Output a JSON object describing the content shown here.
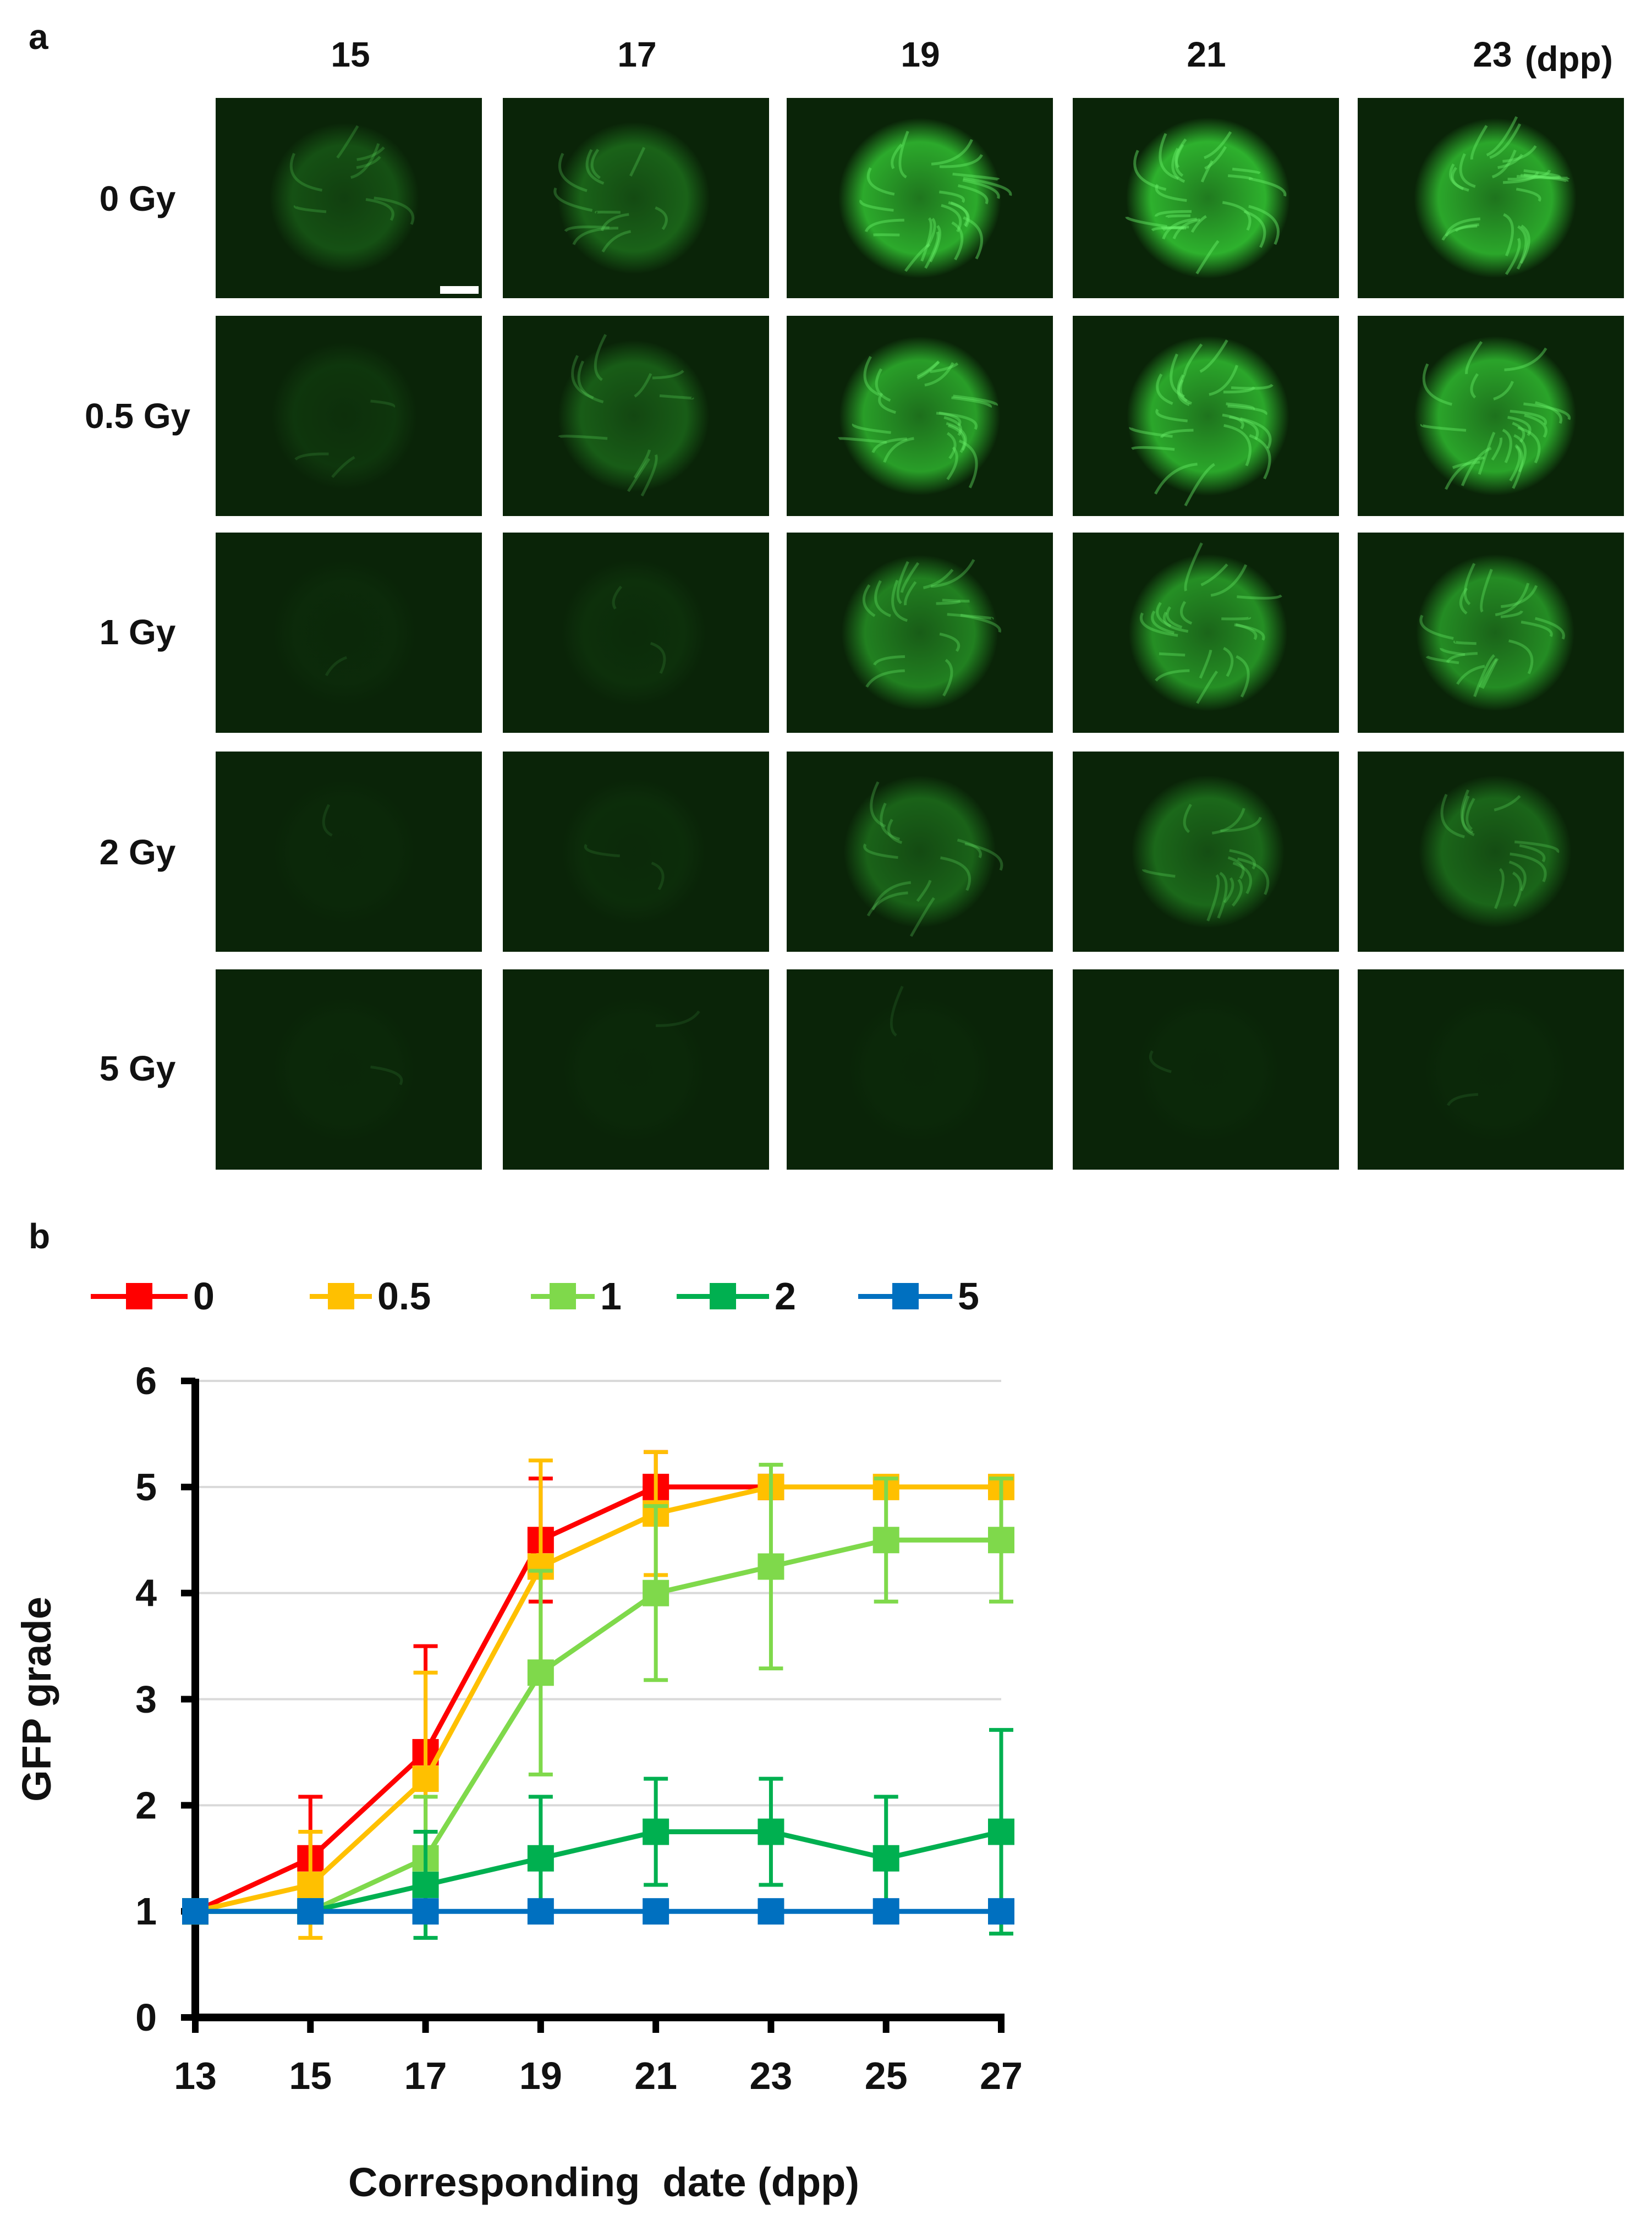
{
  "panel_a": {
    "label": "a",
    "columns": [
      "15",
      "17",
      "19",
      "21",
      "23"
    ],
    "column_unit": "(dpp)",
    "rows": [
      "0 Gy",
      "0.5 Gy",
      "1 Gy",
      "2 Gy",
      "5 Gy"
    ],
    "intensity": [
      [
        0.3,
        0.42,
        0.9,
        0.95,
        0.88
      ],
      [
        0.12,
        0.38,
        0.82,
        0.88,
        0.86
      ],
      [
        0.04,
        0.08,
        0.62,
        0.72,
        0.7
      ],
      [
        0.03,
        0.06,
        0.42,
        0.46,
        0.44
      ],
      [
        0.03,
        0.03,
        0.03,
        0.03,
        0.03
      ]
    ],
    "fluorescence_color": "#34c934",
    "background_color": "#0a2408"
  },
  "panel_b": {
    "label": "b",
    "chart_data": {
      "type": "line",
      "x": [
        13,
        15,
        17,
        19,
        21,
        23,
        25,
        27
      ],
      "xlabel": "Corresponding  date (dpp)",
      "ylabel": "GFP grade",
      "xlim": [
        13,
        27
      ],
      "ylim": [
        0,
        6
      ],
      "xticks": [
        "13",
        "15",
        "17",
        "19",
        "21",
        "23",
        "25",
        "27"
      ],
      "yticks": [
        "0",
        "1",
        "2",
        "3",
        "4",
        "5",
        "6"
      ],
      "grid": "horizontal",
      "legend_position": "top",
      "series": [
        {
          "name": "0",
          "color": "#ff0000",
          "values": [
            1,
            1.5,
            2.5,
            4.5,
            5,
            5,
            null,
            null
          ],
          "errors": [
            0,
            0.58,
            1.0,
            0.58,
            0.33,
            0,
            null,
            null
          ]
        },
        {
          "name": "0.5",
          "color": "#ffc000",
          "values": [
            1,
            1.25,
            2.25,
            4.25,
            4.75,
            5,
            5,
            5
          ],
          "errors": [
            0,
            0.5,
            1.0,
            1.0,
            0.58,
            0,
            0,
            0
          ]
        },
        {
          "name": "1",
          "color": "#7fd94b",
          "values": [
            1,
            1,
            1.5,
            3.25,
            4,
            4.25,
            4.5,
            4.5
          ],
          "errors": [
            0,
            0,
            0.58,
            0.96,
            0.82,
            0.96,
            0.58,
            0.58
          ]
        },
        {
          "name": "2",
          "color": "#00b050",
          "values": [
            1,
            1,
            1.25,
            1.5,
            1.75,
            1.75,
            1.5,
            1.75
          ],
          "errors": [
            0,
            0,
            0.5,
            0.58,
            0.5,
            0.5,
            0.58,
            0.96
          ]
        },
        {
          "name": "5",
          "color": "#0070c0",
          "values": [
            1,
            1,
            1,
            1,
            1,
            1,
            1,
            1
          ],
          "errors": [
            0,
            0,
            0,
            0,
            0,
            0,
            0,
            0
          ]
        }
      ]
    }
  }
}
